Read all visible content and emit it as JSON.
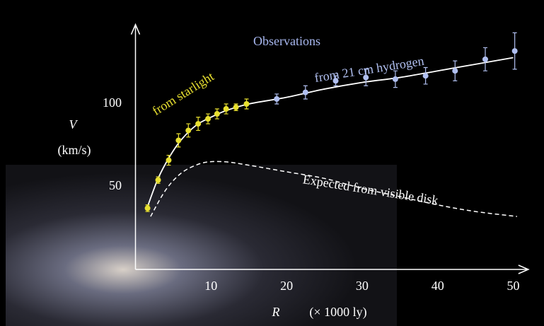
{
  "chart_data": {
    "type": "scatter",
    "annotation": "Observations",
    "ylabel": [
      "V",
      "(km/s)"
    ],
    "xlabel": [
      "R",
      "(× 1000 ly)"
    ],
    "xlim": [
      0,
      52
    ],
    "ylim": [
      0,
      148
    ],
    "xticks": [
      10,
      20,
      30,
      40,
      50
    ],
    "yticks": [
      50,
      100
    ],
    "series": [
      {
        "name": "from starlight",
        "color": "#e8e030",
        "x": [
          1.6,
          3.0,
          4.4,
          5.7,
          7.0,
          8.3,
          9.6,
          10.8,
          12.0,
          13.3,
          14.7
        ],
        "values": [
          37,
          54,
          66,
          78,
          84,
          88,
          91,
          94,
          97,
          98,
          100
        ],
        "errors": [
          2,
          2,
          3,
          4,
          4,
          4,
          3,
          3,
          3,
          2,
          3
        ]
      },
      {
        "name": "from 21 cm hydrogen",
        "color": "#b0bff0",
        "x": [
          18.7,
          22.5,
          26.5,
          30.5,
          34.4,
          38.4,
          42.3,
          46.3,
          50.2
        ],
        "values": [
          103,
          107,
          114,
          116,
          115,
          117,
          120,
          127,
          132
        ],
        "errors": [
          3,
          4,
          3,
          5,
          5,
          5,
          6,
          7,
          11
        ]
      },
      {
        "name": "Expected from visible disk",
        "color": "#ffffff",
        "line": "dashed",
        "x": [
          2,
          4,
          6,
          8,
          9.7,
          12,
          15,
          20,
          25,
          30,
          35,
          40,
          45,
          50.5
        ],
        "values": [
          32,
          48,
          58,
          63,
          65,
          65,
          63,
          59,
          55,
          49,
          44,
          39,
          35,
          32
        ]
      }
    ],
    "fit": {
      "color": "#ffffff",
      "x": [
        1.6,
        3,
        4.5,
        6,
        8,
        10,
        12,
        15,
        20,
        25,
        30,
        35,
        40,
        45,
        50
      ],
      "values": [
        38,
        55,
        68,
        78,
        87,
        92,
        96,
        100,
        104,
        109,
        113,
        116,
        120,
        124,
        128
      ]
    }
  }
}
